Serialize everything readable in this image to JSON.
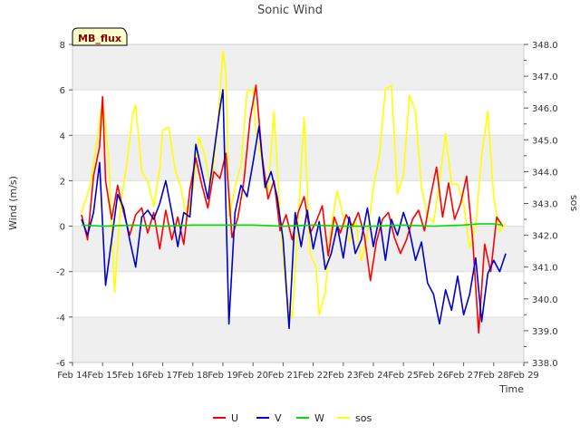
{
  "chart_data": {
    "type": "line",
    "title": "Sonic Wind",
    "xlabel": "Time",
    "ylabel": "Wind (m/s)",
    "y2label": "sos",
    "badge": "MB_flux",
    "xlim": [
      0,
      15
    ],
    "ylim": [
      -6,
      8
    ],
    "y2lim": [
      338.0,
      348.0
    ],
    "x_ticks": [
      {
        "value": 0,
        "label": "Feb 14"
      },
      {
        "value": 1,
        "label": "Feb 15"
      },
      {
        "value": 2,
        "label": "Feb 16"
      },
      {
        "value": 3,
        "label": "Feb 17"
      },
      {
        "value": 4,
        "label": "Feb 18"
      },
      {
        "value": 5,
        "label": "Feb 19"
      },
      {
        "value": 6,
        "label": "Feb 20"
      },
      {
        "value": 7,
        "label": "Feb 21"
      },
      {
        "value": 8,
        "label": "Feb 22"
      },
      {
        "value": 9,
        "label": "Feb 23"
      },
      {
        "value": 10,
        "label": "Feb 24"
      },
      {
        "value": 11,
        "label": "Feb 25"
      },
      {
        "value": 12,
        "label": "Feb 26"
      },
      {
        "value": 13,
        "label": "Feb 27"
      },
      {
        "value": 14,
        "label": "Feb 28"
      },
      {
        "value": 15,
        "label": "Feb 29"
      }
    ],
    "y_ticks": [
      {
        "value": -6,
        "label": "-6"
      },
      {
        "value": -4,
        "label": "-4"
      },
      {
        "value": -2,
        "label": "-2"
      },
      {
        "value": 0,
        "label": "0"
      },
      {
        "value": 2,
        "label": "2"
      },
      {
        "value": 4,
        "label": "4"
      },
      {
        "value": 6,
        "label": "6"
      },
      {
        "value": 8,
        "label": "8"
      }
    ],
    "y2_ticks": [
      {
        "value": 338,
        "label": "338.0"
      },
      {
        "value": 339,
        "label": "339.0"
      },
      {
        "value": 340,
        "label": "340.0"
      },
      {
        "value": 341,
        "label": "341.0"
      },
      {
        "value": 342,
        "label": "342.0"
      },
      {
        "value": 343,
        "label": "343.0"
      },
      {
        "value": 344,
        "label": "344.0"
      },
      {
        "value": 345,
        "label": "345.0"
      },
      {
        "value": 346,
        "label": "346.0"
      },
      {
        "value": 347,
        "label": "347.0"
      },
      {
        "value": 348,
        "label": "348.0"
      }
    ],
    "grid": true,
    "legend_position": "bottom-center",
    "series": [
      {
        "name": "U",
        "axis": "left",
        "color": "#ff0000",
        "x": [
          0.3,
          0.5,
          0.7,
          0.9,
          1.0,
          1.1,
          1.3,
          1.5,
          1.7,
          1.9,
          2.1,
          2.3,
          2.5,
          2.7,
          2.9,
          3.1,
          3.3,
          3.5,
          3.7,
          3.9,
          4.1,
          4.3,
          4.5,
          4.7,
          4.9,
          5.1,
          5.3,
          5.5,
          5.7,
          5.9,
          6.1,
          6.3,
          6.5,
          6.7,
          6.9,
          7.1,
          7.3,
          7.5,
          7.7,
          7.9,
          8.1,
          8.3,
          8.5,
          8.7,
          8.9,
          9.1,
          9.3,
          9.5,
          9.7,
          9.9,
          10.1,
          10.3,
          10.5,
          10.7,
          10.9,
          11.1,
          11.3,
          11.5,
          11.7,
          11.9,
          12.1,
          12.3,
          12.5,
          12.7,
          12.9,
          13.1,
          13.3,
          13.5,
          13.7,
          13.9,
          14.1,
          14.3
        ],
        "y": [
          0.5,
          -0.6,
          2.2,
          3.5,
          5.7,
          2.0,
          0.3,
          1.8,
          0.6,
          -0.4,
          0.5,
          0.8,
          -0.3,
          0.6,
          -1.0,
          0.7,
          -0.6,
          0.4,
          -0.8,
          1.6,
          3.0,
          1.8,
          0.8,
          2.4,
          2.1,
          3.2,
          -0.5,
          0.4,
          2.0,
          4.7,
          6.2,
          3.1,
          1.2,
          2.0,
          -0.2,
          0.5,
          -0.6,
          0.6,
          1.3,
          -0.3,
          0.2,
          0.9,
          -1.3,
          0.4,
          -0.3,
          0.5,
          0.0,
          0.6,
          -0.4,
          -2.4,
          -0.7,
          0.3,
          0.6,
          -0.5,
          -1.2,
          -0.6,
          0.3,
          0.7,
          -0.2,
          1.3,
          2.6,
          0.4,
          1.9,
          0.3,
          1.0,
          2.2,
          -0.6,
          -4.7,
          -0.8,
          -2.0,
          0.4,
          0.0
        ]
      },
      {
        "name": "V",
        "axis": "left",
        "color": "#0000cc",
        "x": [
          0.3,
          0.5,
          0.7,
          0.9,
          1.1,
          1.3,
          1.5,
          1.7,
          1.9,
          2.1,
          2.3,
          2.5,
          2.7,
          2.9,
          3.1,
          3.3,
          3.5,
          3.7,
          3.9,
          4.1,
          4.3,
          4.5,
          4.7,
          4.9,
          5.0,
          5.2,
          5.4,
          5.6,
          5.8,
          6.0,
          6.2,
          6.4,
          6.6,
          6.8,
          7.0,
          7.2,
          7.4,
          7.6,
          7.8,
          8.0,
          8.2,
          8.4,
          8.6,
          8.8,
          9.0,
          9.2,
          9.4,
          9.6,
          9.8,
          10.0,
          10.2,
          10.4,
          10.6,
          10.8,
          11.0,
          11.2,
          11.4,
          11.6,
          11.8,
          12.0,
          12.2,
          12.4,
          12.6,
          12.8,
          13.0,
          13.2,
          13.4,
          13.6,
          13.8,
          14.0,
          14.2,
          14.4
        ],
        "y": [
          0.3,
          -0.4,
          0.6,
          2.8,
          -2.6,
          -0.6,
          1.4,
          0.8,
          -0.6,
          -1.8,
          0.4,
          0.7,
          0.3,
          1.0,
          2.0,
          0.6,
          -0.9,
          0.6,
          0.4,
          3.6,
          2.4,
          1.2,
          3.2,
          5.2,
          6.0,
          -4.3,
          0.6,
          1.8,
          1.3,
          2.8,
          4.4,
          1.7,
          2.4,
          1.3,
          -0.6,
          -4.5,
          0.6,
          -0.9,
          0.7,
          -1.0,
          0.2,
          -1.9,
          -1.2,
          0.0,
          -1.4,
          0.4,
          -1.2,
          -0.6,
          0.8,
          -0.9,
          0.4,
          -1.5,
          0.3,
          -0.4,
          0.6,
          -0.2,
          -1.5,
          -0.7,
          -2.5,
          -3.0,
          -4.3,
          -2.8,
          -3.7,
          -2.2,
          -3.9,
          -3.0,
          -1.4,
          -4.2,
          -2.1,
          -1.5,
          -2.0,
          -1.2
        ]
      },
      {
        "name": "W",
        "axis": "left",
        "color": "#00dd00",
        "x": [
          0.3,
          1.0,
          2.0,
          3.0,
          4.0,
          5.0,
          6.0,
          7.0,
          8.0,
          9.0,
          10.0,
          11.0,
          12.0,
          13.0,
          13.5,
          14.0,
          14.3
        ],
        "y": [
          0.05,
          0.0,
          0.05,
          0.0,
          0.05,
          0.05,
          0.05,
          0.0,
          0.05,
          0.0,
          0.0,
          0.05,
          0.0,
          0.05,
          0.1,
          0.1,
          0.05
        ]
      },
      {
        "name": "sos",
        "axis": "right",
        "color": "#ffff00",
        "x": [
          0.3,
          0.6,
          0.9,
          1.0,
          1.2,
          1.4,
          1.6,
          1.8,
          2.0,
          2.1,
          2.3,
          2.5,
          2.7,
          2.9,
          3.0,
          3.2,
          3.4,
          3.6,
          3.8,
          4.0,
          4.2,
          4.4,
          4.6,
          4.8,
          5.0,
          5.1,
          5.2,
          5.4,
          5.6,
          5.8,
          6.0,
          6.1,
          6.3,
          6.5,
          6.7,
          6.9,
          7.1,
          7.3,
          7.5,
          7.7,
          7.9,
          8.1,
          8.2,
          8.4,
          8.6,
          8.8,
          9.0,
          9.2,
          9.4,
          9.6,
          9.8,
          10.0,
          10.2,
          10.4,
          10.6,
          10.8,
          11.0,
          11.2,
          11.4,
          11.6,
          11.8,
          12.0,
          12.2,
          12.4,
          12.6,
          12.8,
          13.0,
          13.2,
          13.4,
          13.6,
          13.8,
          14.0,
          14.2,
          14.4
        ],
        "y": [
          342.7,
          343.6,
          345.6,
          346.2,
          344.5,
          340.2,
          343.0,
          344.2,
          345.8,
          346.1,
          344.0,
          343.7,
          342.9,
          344.1,
          345.3,
          345.4,
          344.1,
          343.5,
          342.5,
          343.4,
          345.1,
          344.5,
          343.4,
          345.2,
          347.8,
          347.1,
          342.6,
          343.5,
          344.2,
          346.5,
          346.6,
          345.2,
          344.3,
          343.4,
          345.9,
          342.6,
          340.2,
          339.4,
          342.5,
          345.7,
          341.4,
          341.0,
          339.5,
          340.2,
          342.3,
          343.4,
          342.6,
          341.8,
          342.5,
          341.2,
          342.0,
          343.5,
          344.5,
          346.6,
          346.7,
          343.3,
          343.9,
          346.4,
          345.9,
          343.5,
          342.6,
          342.4,
          343.7,
          345.2,
          343.6,
          343.6,
          343.0,
          341.6,
          342.3,
          344.5,
          345.9,
          343.2,
          342.1,
          342.4
        ]
      }
    ]
  }
}
